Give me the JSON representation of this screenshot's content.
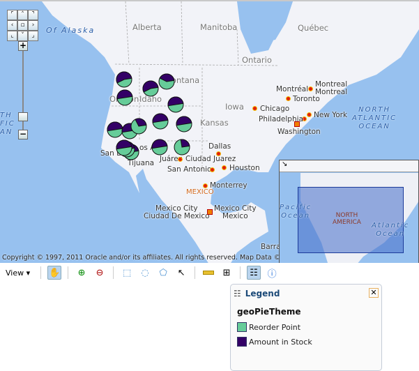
{
  "map": {
    "regions": [
      "Alberta",
      "Manitoba",
      "Québec",
      "Ontario",
      "Iowa",
      "Kansas",
      "Montana",
      "Oregon",
      "Idaho"
    ],
    "oceans": {
      "alaska": "Of Alaska",
      "north_pacific": "TH\nFIC\nAN",
      "north_atlantic": "NORTH\nATLANTIC\nOCEAN"
    },
    "cities": {
      "montreal_left": "Montréal",
      "montreal_right": "Montreal\nMontreal",
      "toronto": "Toronto",
      "chicago": "Chicago",
      "new_york": "New York",
      "philadelphia": "Philadelphia",
      "washington": "Washington",
      "dallas": "Dallas",
      "juarez": "Juárez",
      "ciudad_juarez": "Ciudad Juarez",
      "san_antonio": "San Antonio",
      "houston": "Houston",
      "monterrey": "Monterrey",
      "mexico_city_left": "Mexico City\nCiudad De Mexico",
      "mexico_city_right": "Mexico City\nMexico",
      "san_diego": "San Di",
      "tijuana": "Tijuana",
      "los_angeles": "os Ang",
      "barra": "Barra"
    },
    "country_mexico": "MEXICO",
    "copyright": "Copyright © 1997, 2011 Oracle and/or its affiliates. All rights reserved. Map Data © 2011 NAVTEQ.",
    "pie_series_colors": {
      "reorder_point": "#66cc99",
      "amount_in_stock": "#330066"
    },
    "pies_stock_fraction": [
      0.55,
      0.5,
      0.55,
      0.4,
      0.5,
      0.5,
      0.5,
      0.5,
      0.5,
      0.3,
      0.5,
      0.5,
      0.5,
      0.5,
      0.25
    ]
  },
  "overview": {
    "toggle_icon": "collapse-arrow-icon",
    "labels": {
      "pacific": "Pacific\nOcean",
      "north_america": "NORTH\nAMERICA",
      "atlantic": "Atlantic\nOcean"
    }
  },
  "toolbar": {
    "view_label": "View ▾",
    "tools": [
      "pan-hand-icon",
      "zoom-in-icon",
      "zoom-out-icon",
      "rectangle-select-icon",
      "circle-select-icon",
      "polygon-select-icon",
      "pointer-icon",
      "distance-ruler-icon",
      "grid-icon",
      "legend-icon",
      "info-icon"
    ]
  },
  "legend": {
    "title": "Legend",
    "theme": "geoPieTheme",
    "items": [
      {
        "label": "Reorder Point",
        "color": "#66cc99"
      },
      {
        "label": "Amount in Stock",
        "color": "#330066"
      }
    ]
  }
}
